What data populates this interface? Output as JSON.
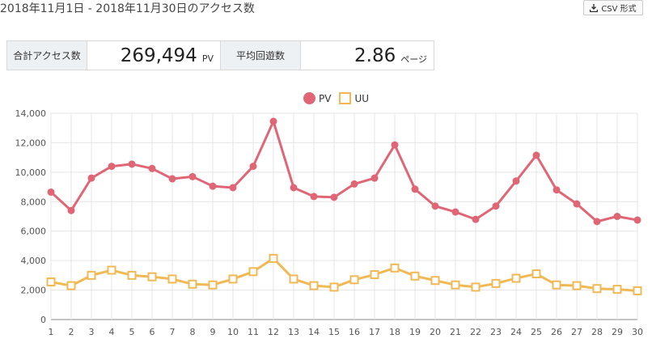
{
  "header": {
    "title": "2018年11月1日 - 2018年11月30日のアクセス数",
    "csv_label": "CSV 形式"
  },
  "stats": {
    "total_label": "合計アクセス数",
    "total_value": "269,494",
    "total_unit": "PV",
    "avg_label": "平均回遊数",
    "avg_value": "2.86",
    "avg_unit": "ページ"
  },
  "colors": {
    "pv": "#e06676",
    "uu": "#f0b955",
    "weekend_blue": "#3d8fd6",
    "weekend_red": "#e0464a",
    "grid": "#e5e5e5"
  },
  "chart_data": {
    "type": "line",
    "categories": [
      "1",
      "2",
      "3",
      "4",
      "5",
      "6",
      "7",
      "8",
      "9",
      "10",
      "11",
      "12",
      "13",
      "14",
      "15",
      "16",
      "17",
      "18",
      "19",
      "20",
      "21",
      "22",
      "23",
      "24",
      "25",
      "26",
      "27",
      "28",
      "29",
      "30"
    ],
    "category_colors": {
      "3": "blue",
      "10": "blue",
      "17": "blue",
      "24": "blue",
      "4": "red",
      "11": "red",
      "18": "red",
      "25": "red"
    },
    "series": [
      {
        "name": "PV",
        "values": [
          8650,
          7400,
          9600,
          10400,
          10550,
          10250,
          9550,
          9700,
          9050,
          8950,
          10400,
          13450,
          8950,
          8350,
          8300,
          9200,
          9600,
          11850,
          8850,
          7700,
          7300,
          6800,
          7700,
          9400,
          11150,
          8800,
          7850,
          6650,
          7000,
          6750
        ]
      },
      {
        "name": "UU",
        "values": [
          2550,
          2300,
          3000,
          3350,
          3000,
          2900,
          2750,
          2400,
          2350,
          2750,
          3250,
          4150,
          2750,
          2300,
          2200,
          2700,
          3050,
          3500,
          2950,
          2650,
          2350,
          2200,
          2450,
          2800,
          3100,
          2350,
          2300,
          2100,
          2050,
          1950
        ]
      }
    ],
    "yticks": [
      "0",
      "2,000",
      "4,000",
      "6,000",
      "8,000",
      "10,000",
      "12,000",
      "14,000"
    ],
    "ylim": [
      0,
      14000
    ],
    "grid": true,
    "legend": "top-center"
  }
}
